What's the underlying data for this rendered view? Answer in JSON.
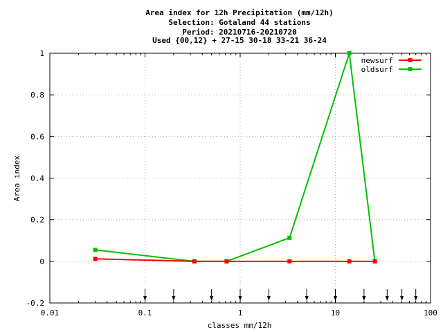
{
  "chart_data": {
    "type": "line",
    "title": [
      "Area index  for 12h Precipitation (mm/12h)",
      "Selection: Gotaland     44 stations",
      "Period: 20210716-20210720",
      "Used {00,12} + 27-15 30-18 33-21 36-24"
    ],
    "xlabel": "classes mm/12h",
    "ylabel": "Area index",
    "xscale": "log",
    "xlim": [
      0.01,
      100
    ],
    "ylim": [
      -0.2,
      1
    ],
    "grid": true,
    "legend_position": "top-right",
    "x_ticks": [
      {
        "value": 0.01,
        "label": "0.01"
      },
      {
        "value": 0.1,
        "label": "0.1"
      },
      {
        "value": 1,
        "label": "1"
      },
      {
        "value": 10,
        "label": "10"
      },
      {
        "value": 100,
        "label": "100"
      }
    ],
    "y_ticks": [
      {
        "value": -0.2,
        "label": "-0.2"
      },
      {
        "value": 0,
        "label": "0"
      },
      {
        "value": 0.2,
        "label": "0.2"
      },
      {
        "value": 0.4,
        "label": "0.4"
      },
      {
        "value": 0.6,
        "label": "0.6"
      },
      {
        "value": 0.8,
        "label": "0.8"
      },
      {
        "value": 1,
        "label": "1"
      }
    ],
    "arrow_marks_x": [
      0.1,
      0.2,
      0.5,
      1,
      2,
      5,
      10,
      20,
      35,
      50,
      70
    ],
    "series": [
      {
        "name": "newsurf",
        "color": "#ff0000",
        "x": [
          0.03,
          0.33,
          0.72,
          3.3,
          14,
          26
        ],
        "y": [
          0.012,
          0.0,
          0.0,
          0.0,
          0.0,
          0.0
        ]
      },
      {
        "name": "oldsurf",
        "color": "#00c000",
        "x": [
          0.03,
          0.33,
          0.72,
          3.3,
          14,
          26
        ],
        "y": [
          0.055,
          0.0,
          0.0,
          0.113,
          1.0,
          0.0
        ]
      }
    ]
  }
}
